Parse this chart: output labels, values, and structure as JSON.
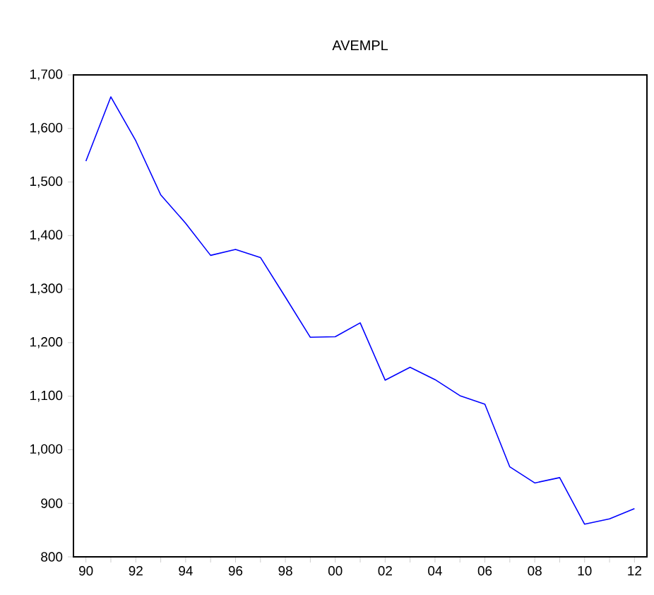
{
  "chart_data": {
    "type": "line",
    "title": "AVEMPL",
    "x": [
      1990,
      1991,
      1992,
      1993,
      1994,
      1995,
      1996,
      1997,
      1998,
      1999,
      2000,
      2001,
      2002,
      2003,
      2004,
      2005,
      2006,
      2007,
      2008,
      2009,
      2010,
      2011,
      2012
    ],
    "series": [
      {
        "color": "#0000ff",
        "values": [
          1539,
          1659,
          1577,
          1476,
          1423,
          1363,
          1374,
          1359,
          1285,
          1210,
          1211,
          1237,
          1130,
          1154,
          1131,
          1101,
          1085,
          968,
          938,
          948,
          861,
          871,
          890
        ]
      }
    ],
    "xlim": [
      1989.5,
      2012.5
    ],
    "xticks": [
      {
        "value": 1990,
        "label": "90"
      },
      {
        "value": 1991,
        "label": null
      },
      {
        "value": 1992,
        "label": "92"
      },
      {
        "value": 1993,
        "label": null
      },
      {
        "value": 1994,
        "label": "94"
      },
      {
        "value": 1995,
        "label": null
      },
      {
        "value": 1996,
        "label": "96"
      },
      {
        "value": 1997,
        "label": null
      },
      {
        "value": 1998,
        "label": "98"
      },
      {
        "value": 1999,
        "label": null
      },
      {
        "value": 2000,
        "label": "00"
      },
      {
        "value": 2001,
        "label": null
      },
      {
        "value": 2002,
        "label": "02"
      },
      {
        "value": 2003,
        "label": null
      },
      {
        "value": 2004,
        "label": "04"
      },
      {
        "value": 2005,
        "label": null
      },
      {
        "value": 2006,
        "label": "06"
      },
      {
        "value": 2007,
        "label": null
      },
      {
        "value": 2008,
        "label": "08"
      },
      {
        "value": 2009,
        "label": null
      },
      {
        "value": 2010,
        "label": "10"
      },
      {
        "value": 2011,
        "label": null
      },
      {
        "value": 2012,
        "label": "12"
      }
    ],
    "ylim": [
      800,
      1700
    ],
    "yticks": [
      {
        "value": 800,
        "label": "800"
      },
      {
        "value": 900,
        "label": "900"
      },
      {
        "value": 1000,
        "label": "1,000"
      },
      {
        "value": 1100,
        "label": "1,100"
      },
      {
        "value": 1200,
        "label": "1,200"
      },
      {
        "value": 1300,
        "label": "1,300"
      },
      {
        "value": 1400,
        "label": "1,400"
      },
      {
        "value": 1500,
        "label": "1,500"
      },
      {
        "value": 1600,
        "label": "1,600"
      },
      {
        "value": 1700,
        "label": "1,700"
      }
    ],
    "grid": false,
    "marker": "none",
    "line_style": "solid"
  }
}
